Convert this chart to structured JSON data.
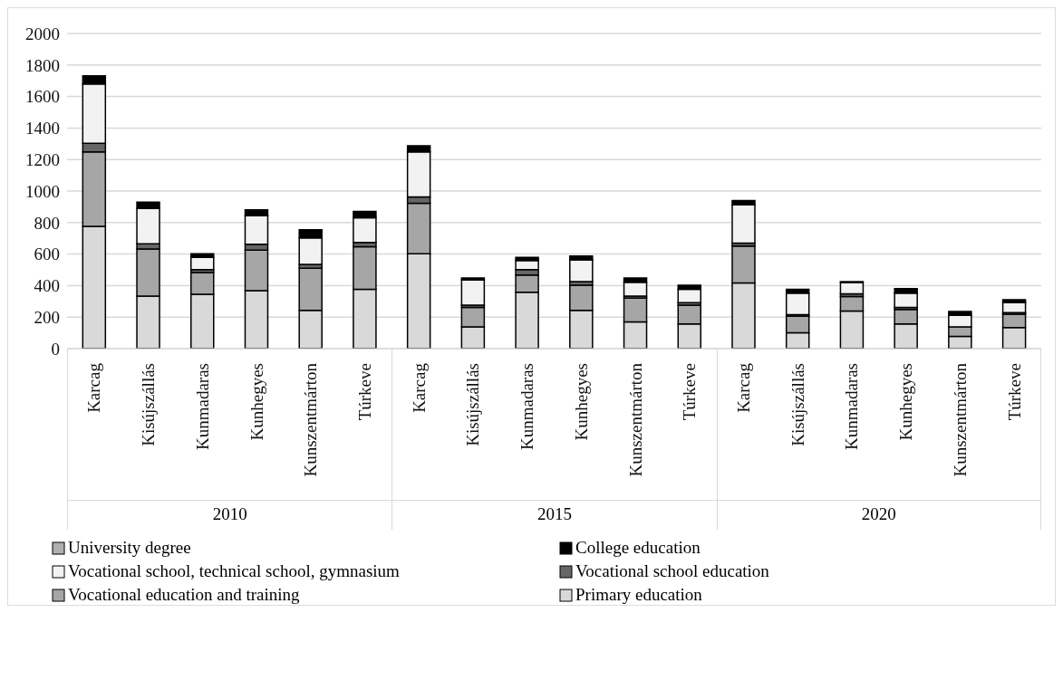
{
  "chart_data": {
    "type": "bar",
    "stacked": true,
    "categories": [
      "Karcag",
      "Kisújszállás",
      "Kunmadaras",
      "Kunhegyes",
      "Kunszentmárton",
      "Túrkeve",
      "Karcag",
      "Kisújszállás",
      "Kunmadaras",
      "Kunhegyes",
      "Kunszentmárton",
      "Túrkeve",
      "Karcag",
      "Kisújszállás",
      "Kunmadaras",
      "Kunhegyes",
      "Kunszentmárton",
      "Túrkeve"
    ],
    "annotations": [
      "2010",
      "2015",
      "2020"
    ],
    "series": [
      {
        "name": "Primary education",
        "color": "#d9d9d9",
        "values": [
          776,
          333,
          345,
          368,
          243,
          377,
          602,
          138,
          358,
          243,
          170,
          157,
          416,
          100,
          239,
          157,
          77,
          134
        ]
      },
      {
        "name": "Vocational education and training",
        "color": "#a6a6a6",
        "values": [
          473,
          299,
          138,
          257,
          267,
          269,
          321,
          124,
          109,
          159,
          150,
          119,
          235,
          105,
          91,
          92,
          61,
          84
        ]
      },
      {
        "name": "Vocational school education",
        "color": "#666666",
        "values": [
          54,
          33,
          19,
          38,
          24,
          28,
          39,
          14,
          35,
          23,
          13,
          15,
          19,
          10,
          17,
          13,
          null,
          10
        ]
      },
      {
        "name": "Vocational school, technical school, gymnasium",
        "color": "#f2f2f2",
        "values": [
          377,
          224,
          77,
          180,
          169,
          157,
          287,
          159,
          57,
          138,
          88,
          86,
          242,
          137,
          73,
          90,
          73,
          63
        ]
      },
      {
        "name": "College education",
        "color": "#000000",
        "values": [
          52,
          40,
          23,
          38,
          52,
          39,
          38,
          13,
          20,
          25,
          27,
          25,
          27,
          25,
          5,
          29,
          24,
          19
        ]
      },
      {
        "name": "University degree",
        "color": "#b0b0b0",
        "values": [
          0,
          0,
          0,
          0,
          0,
          0,
          0,
          0,
          0,
          0,
          0,
          0,
          0,
          0,
          0,
          0,
          0,
          0
        ]
      }
    ],
    "ylim": [
      0,
      2000
    ],
    "yticks": [
      0,
      200,
      400,
      600,
      800,
      1000,
      1200,
      1400,
      1600,
      1800,
      2000
    ],
    "grid": "y",
    "legend": "bottom"
  }
}
